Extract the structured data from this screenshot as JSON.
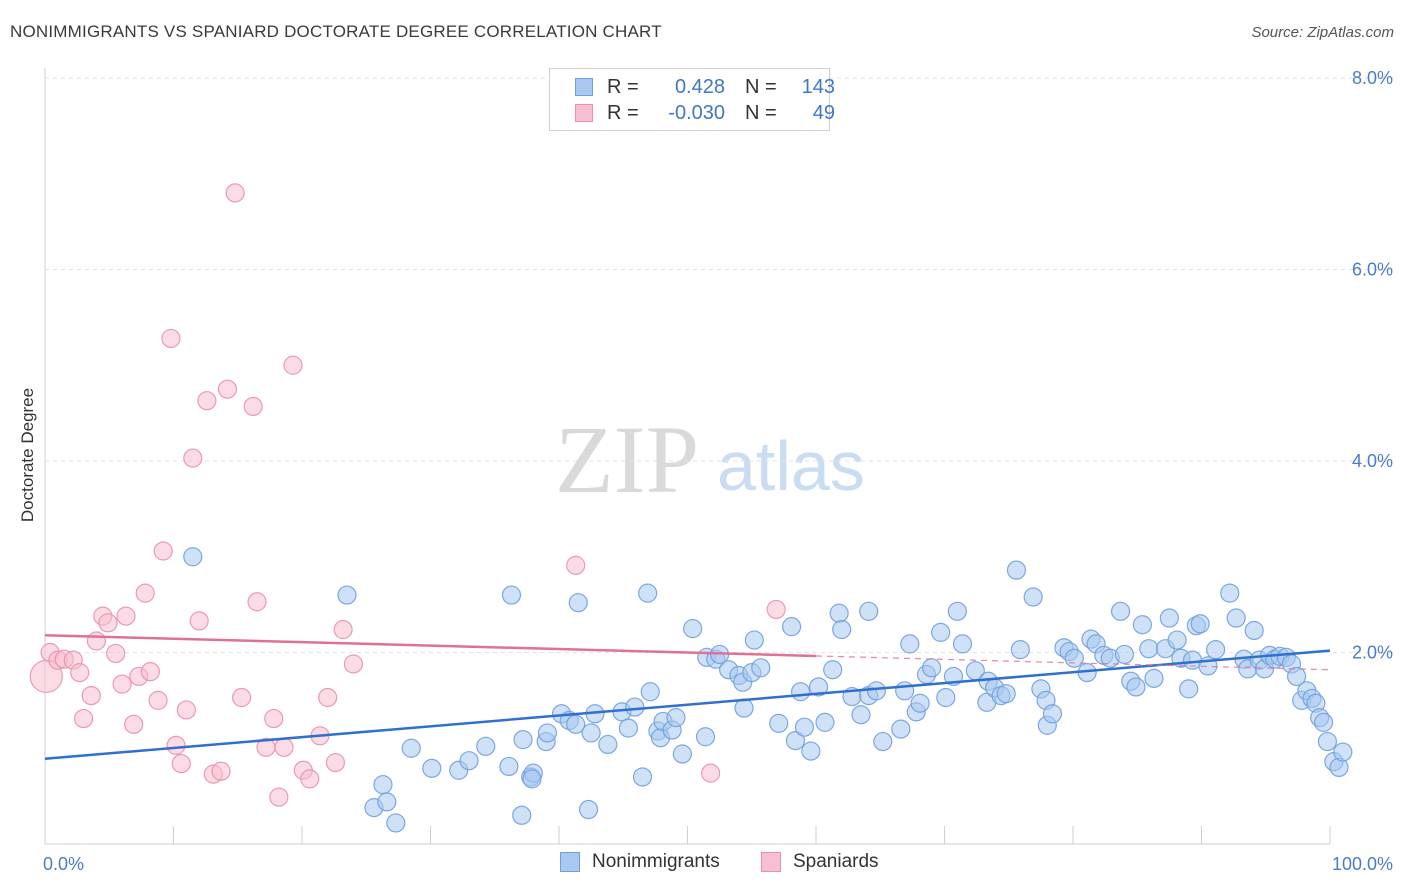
{
  "title": "NONIMMIGRANTS VS SPANIARD DOCTORATE DEGREE CORRELATION CHART",
  "source": "Source: ZipAtlas.com",
  "watermark": {
    "zip": "ZIP",
    "atlas": "atlas"
  },
  "legend": {
    "rows": [
      {
        "r_label": "R =",
        "r_value": "0.428",
        "n_label": "N =",
        "n_value": "143",
        "color": "#a8c8f0",
        "border": "#6f9fe0"
      },
      {
        "r_label": "R =",
        "r_value": "-0.030",
        "n_label": "N =",
        "n_value": "49",
        "color": "#f7bfd0",
        "border": "#ea8fae"
      }
    ]
  },
  "bottom_legend": [
    {
      "label": "Nonimmigrants",
      "color": "#a8c8f0",
      "border": "#6f9fe0"
    },
    {
      "label": "Spaniards",
      "color": "#f7bfd0",
      "border": "#ea8fae"
    }
  ],
  "chart_data": {
    "type": "scatter",
    "title": "NONIMMIGRANTS VS SPANIARD DOCTORATE DEGREE CORRELATION CHART",
    "xlabel": "",
    "ylabel": "Doctorate Degree",
    "xlim": [
      0,
      100
    ],
    "ylim": [
      0,
      8.2
    ],
    "x_tick_labels": [
      "0.0%",
      "100.0%"
    ],
    "y_ticks": [
      2.0,
      4.0,
      6.0,
      8.0
    ],
    "y_tick_labels": [
      "2.0%",
      "4.0%",
      "6.0%",
      "8.0%"
    ],
    "grid": true,
    "legend_position": "top-center",
    "series": [
      {
        "name": "Nonimmigrants",
        "color": "#6f9fe0",
        "fill": "#a8c8f0",
        "trend": {
          "x": [
            0,
            100
          ],
          "y": [
            0.89,
            2.02
          ],
          "dashed_from": null
        },
        "points": [
          [
            11.5,
            3.0
          ],
          [
            23.5,
            2.6
          ],
          [
            26.3,
            0.62
          ],
          [
            25.6,
            0.38
          ],
          [
            26.6,
            0.44
          ],
          [
            27.3,
            0.22
          ],
          [
            28.5,
            1.0
          ],
          [
            30.1,
            0.79
          ],
          [
            32.2,
            0.77
          ],
          [
            33.0,
            0.87
          ],
          [
            34.3,
            1.02
          ],
          [
            36.1,
            0.81
          ],
          [
            37.1,
            0.3
          ],
          [
            36.3,
            2.6
          ],
          [
            37.8,
            0.7
          ],
          [
            37.2,
            1.09
          ],
          [
            38.0,
            0.74
          ],
          [
            37.9,
            0.68
          ],
          [
            39.0,
            1.07
          ],
          [
            39.1,
            1.16
          ],
          [
            40.2,
            1.36
          ],
          [
            40.8,
            1.29
          ],
          [
            41.5,
            2.52
          ],
          [
            42.3,
            0.36
          ],
          [
            41.3,
            1.25
          ],
          [
            42.5,
            1.16
          ],
          [
            42.8,
            1.36
          ],
          [
            43.8,
            1.04
          ],
          [
            44.9,
            1.38
          ],
          [
            45.4,
            1.21
          ],
          [
            45.9,
            1.43
          ],
          [
            46.5,
            0.7
          ],
          [
            46.9,
            2.62
          ],
          [
            47.1,
            1.59
          ],
          [
            47.7,
            1.18
          ],
          [
            47.9,
            1.11
          ],
          [
            48.1,
            1.28
          ],
          [
            48.8,
            1.19
          ],
          [
            49.1,
            1.32
          ],
          [
            49.6,
            0.94
          ],
          [
            50.4,
            2.25
          ],
          [
            51.4,
            1.12
          ],
          [
            51.5,
            1.95
          ],
          [
            52.2,
            1.93
          ],
          [
            52.5,
            1.98
          ],
          [
            53.2,
            1.82
          ],
          [
            54.0,
            1.76
          ],
          [
            54.3,
            1.69
          ],
          [
            54.4,
            1.42
          ],
          [
            55.0,
            1.79
          ],
          [
            55.2,
            2.13
          ],
          [
            55.7,
            1.84
          ],
          [
            57.1,
            1.26
          ],
          [
            58.1,
            2.27
          ],
          [
            58.4,
            1.08
          ],
          [
            58.8,
            1.59
          ],
          [
            59.1,
            1.22
          ],
          [
            59.6,
            0.97
          ],
          [
            60.2,
            1.64
          ],
          [
            60.7,
            1.27
          ],
          [
            61.3,
            1.82
          ],
          [
            61.8,
            2.41
          ],
          [
            62.0,
            2.24
          ],
          [
            62.8,
            1.54
          ],
          [
            63.5,
            1.35
          ],
          [
            64.1,
            2.43
          ],
          [
            64.1,
            1.55
          ],
          [
            64.7,
            1.6
          ],
          [
            65.2,
            1.07
          ],
          [
            66.6,
            1.2
          ],
          [
            66.9,
            1.6
          ],
          [
            67.3,
            2.09
          ],
          [
            67.8,
            1.38
          ],
          [
            68.1,
            1.47
          ],
          [
            68.6,
            1.77
          ],
          [
            69.0,
            1.84
          ],
          [
            69.7,
            2.21
          ],
          [
            70.1,
            1.53
          ],
          [
            70.7,
            1.75
          ],
          [
            71.0,
            2.43
          ],
          [
            71.4,
            2.09
          ],
          [
            72.4,
            1.81
          ],
          [
            73.3,
            1.48
          ],
          [
            73.4,
            1.7
          ],
          [
            73.9,
            1.63
          ],
          [
            74.4,
            1.55
          ],
          [
            74.8,
            1.57
          ],
          [
            75.6,
            2.86
          ],
          [
            75.9,
            2.03
          ],
          [
            76.9,
            2.58
          ],
          [
            77.5,
            1.62
          ],
          [
            77.9,
            1.5
          ],
          [
            78.0,
            1.24
          ],
          [
            78.4,
            1.36
          ],
          [
            79.3,
            2.05
          ],
          [
            79.7,
            2.01
          ],
          [
            80.1,
            1.94
          ],
          [
            81.1,
            1.79
          ],
          [
            81.4,
            2.14
          ],
          [
            81.8,
            2.09
          ],
          [
            82.4,
            1.97
          ],
          [
            82.9,
            1.94
          ],
          [
            83.7,
            2.43
          ],
          [
            84.0,
            1.98
          ],
          [
            84.5,
            1.7
          ],
          [
            84.9,
            1.64
          ],
          [
            85.4,
            2.29
          ],
          [
            85.9,
            2.04
          ],
          [
            86.3,
            1.73
          ],
          [
            87.2,
            2.04
          ],
          [
            87.5,
            2.36
          ],
          [
            88.1,
            2.13
          ],
          [
            88.4,
            1.94
          ],
          [
            89.0,
            1.62
          ],
          [
            89.3,
            1.92
          ],
          [
            89.6,
            2.28
          ],
          [
            89.9,
            2.3
          ],
          [
            90.5,
            1.86
          ],
          [
            91.1,
            2.03
          ],
          [
            92.2,
            2.62
          ],
          [
            92.7,
            2.36
          ],
          [
            93.3,
            1.93
          ],
          [
            93.6,
            1.83
          ],
          [
            94.1,
            2.23
          ],
          [
            94.5,
            1.92
          ],
          [
            94.9,
            1.83
          ],
          [
            95.3,
            1.97
          ],
          [
            95.7,
            1.93
          ],
          [
            96.1,
            1.96
          ],
          [
            96.6,
            1.95
          ],
          [
            97.0,
            1.88
          ],
          [
            97.4,
            1.75
          ],
          [
            97.8,
            1.5
          ],
          [
            98.2,
            1.6
          ],
          [
            98.6,
            1.52
          ],
          [
            98.9,
            1.47
          ],
          [
            99.2,
            1.32
          ],
          [
            99.5,
            1.27
          ],
          [
            99.8,
            1.07
          ],
          [
            100.3,
            0.86
          ],
          [
            100.7,
            0.8
          ],
          [
            101.0,
            0.96
          ]
        ]
      },
      {
        "name": "Spaniards",
        "color": "#ea8fae",
        "fill": "#f7bfd0",
        "trend": {
          "x": [
            0,
            100
          ],
          "y": [
            2.18,
            1.82
          ],
          "dashed_from": 60
        },
        "points": [
          [
            0.1,
            1.75
          ],
          [
            0.4,
            2.0
          ],
          [
            1.0,
            1.92
          ],
          [
            1.5,
            1.93
          ],
          [
            2.2,
            1.92
          ],
          [
            2.7,
            1.79
          ],
          [
            3.0,
            1.31
          ],
          [
            3.6,
            1.55
          ],
          [
            4.0,
            2.12
          ],
          [
            4.5,
            2.38
          ],
          [
            4.9,
            2.31
          ],
          [
            5.5,
            1.99
          ],
          [
            6.0,
            1.67
          ],
          [
            6.3,
            2.38
          ],
          [
            6.9,
            1.25
          ],
          [
            7.3,
            1.75
          ],
          [
            7.8,
            2.62
          ],
          [
            8.2,
            1.8
          ],
          [
            8.8,
            1.5
          ],
          [
            9.2,
            3.06
          ],
          [
            9.8,
            5.28
          ],
          [
            10.2,
            1.03
          ],
          [
            10.6,
            0.84
          ],
          [
            11.0,
            1.4
          ],
          [
            11.5,
            4.03
          ],
          [
            12.0,
            2.33
          ],
          [
            12.6,
            4.63
          ],
          [
            13.1,
            0.73
          ],
          [
            13.7,
            0.76
          ],
          [
            14.2,
            4.75
          ],
          [
            14.8,
            6.8
          ],
          [
            15.3,
            1.53
          ],
          [
            16.2,
            4.57
          ],
          [
            16.5,
            2.53
          ],
          [
            17.2,
            1.01
          ],
          [
            17.8,
            1.31
          ],
          [
            18.2,
            0.49
          ],
          [
            18.6,
            1.01
          ],
          [
            19.3,
            5.0
          ],
          [
            20.1,
            0.77
          ],
          [
            20.6,
            0.68
          ],
          [
            21.4,
            1.13
          ],
          [
            22.0,
            1.53
          ],
          [
            22.6,
            0.85
          ],
          [
            23.2,
            2.24
          ],
          [
            24.0,
            1.88
          ],
          [
            41.3,
            2.91
          ],
          [
            51.8,
            0.74
          ],
          [
            56.9,
            2.45
          ]
        ]
      }
    ]
  }
}
